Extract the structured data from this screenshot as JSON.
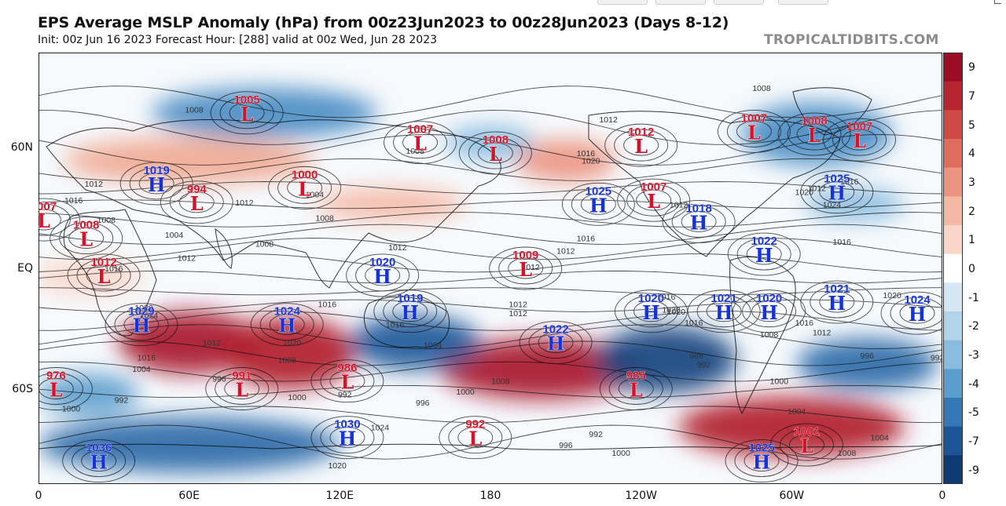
{
  "header": {
    "title": "EPS Average MSLP Anomaly (hPa) from 00z23Jun2023 to 00z28Jun2023 (Days 8-12)",
    "subtitle": "Init: 00z Jun 16 2023   Forecast Hour: [288]   valid at 00z Wed, Jun 28 2023",
    "brand": "TROPICALTIDBITS.COM"
  },
  "axes": {
    "lat_labels": [
      "60N",
      "EQ",
      "60S"
    ],
    "lon_labels": [
      "0",
      "60E",
      "120E",
      "180",
      "120W",
      "60W",
      "0"
    ]
  },
  "colorbar": {
    "labels": [
      "9",
      "7",
      "5",
      "4",
      "3",
      "2",
      "1",
      "0",
      "-1",
      "-2",
      "-3",
      "-4",
      "-5",
      "-7",
      "-9"
    ],
    "colors": [
      "#9b0d22",
      "#b8242f",
      "#cf4a44",
      "#de6d5d",
      "#eb9480",
      "#f4b8a5",
      "#fad6c9",
      "#ffffff",
      "#d6e7f3",
      "#b3d3ea",
      "#8abce0",
      "#5b9dcc",
      "#3479b5",
      "#1d5496",
      "#0e3a73"
    ]
  },
  "map": {
    "centers": [
      {
        "type": "L",
        "value": "1005",
        "lon": 83,
        "lat": 72
      },
      {
        "type": "L",
        "value": "1007",
        "lon": 152,
        "lat": 62
      },
      {
        "type": "L",
        "value": "1008",
        "lon": 182,
        "lat": 58
      },
      {
        "type": "L",
        "value": "1012",
        "lon": 240,
        "lat": 61
      },
      {
        "type": "L",
        "value": "1007",
        "lon": 285,
        "lat": 66
      },
      {
        "type": "L",
        "value": "1008",
        "lon": 309,
        "lat": 65
      },
      {
        "type": "L",
        "value": "1007",
        "lon": 327,
        "lat": 63
      },
      {
        "type": "H",
        "value": "1019",
        "lon": 47,
        "lat": 45
      },
      {
        "type": "L",
        "value": "994",
        "lon": 63,
        "lat": 36
      },
      {
        "type": "L",
        "value": "1000",
        "lon": 106,
        "lat": 43
      },
      {
        "type": "L",
        "value": "1007",
        "lon": 2,
        "lat": 27
      },
      {
        "type": "L",
        "value": "1008",
        "lon": 19,
        "lat": 17
      },
      {
        "type": "L",
        "value": "1012",
        "lon": 26,
        "lat": -4
      },
      {
        "type": "H",
        "value": "1025",
        "lon": 223,
        "lat": 35
      },
      {
        "type": "L",
        "value": "1007",
        "lon": 245,
        "lat": 37
      },
      {
        "type": "H",
        "value": "1018",
        "lon": 263,
        "lat": 26
      },
      {
        "type": "H",
        "value": "1025",
        "lon": 318,
        "lat": 41
      },
      {
        "type": "H",
        "value": "1022",
        "lon": 289,
        "lat": 8
      },
      {
        "type": "H",
        "value": "1020",
        "lon": 137,
        "lat": -4
      },
      {
        "type": "L",
        "value": "1009",
        "lon": 194,
        "lat": 0
      },
      {
        "type": "H",
        "value": "1019",
        "lon": 148,
        "lat": -24
      },
      {
        "type": "H",
        "value": "1020",
        "lon": 244,
        "lat": -24
      },
      {
        "type": "H",
        "value": "1021",
        "lon": 273,
        "lat": -24
      },
      {
        "type": "H",
        "value": "1020",
        "lon": 291,
        "lat": -24
      },
      {
        "type": "H",
        "value": "1021",
        "lon": 318,
        "lat": -19
      },
      {
        "type": "H",
        "value": "1024",
        "lon": 350,
        "lat": -25
      },
      {
        "type": "H",
        "value": "1029",
        "lon": 41,
        "lat": -31
      },
      {
        "type": "H",
        "value": "1024",
        "lon": 99,
        "lat": -31
      },
      {
        "type": "H",
        "value": "1022",
        "lon": 206,
        "lat": -40
      },
      {
        "type": "L",
        "value": "976",
        "lon": 7,
        "lat": -60
      },
      {
        "type": "L",
        "value": "991",
        "lon": 81,
        "lat": -60
      },
      {
        "type": "L",
        "value": "986",
        "lon": 123,
        "lat": -57
      },
      {
        "type": "L",
        "value": "985",
        "lon": 238,
        "lat": -60
      },
      {
        "type": "L",
        "value": "992",
        "lon": 174,
        "lat": -76
      },
      {
        "type": "H",
        "value": "1030",
        "lon": 123,
        "lat": -76
      },
      {
        "type": "H",
        "value": "1036",
        "lon": 24,
        "lat": -82
      },
      {
        "type": "H",
        "value": "1025",
        "lon": 288,
        "lat": -82
      },
      {
        "type": "L",
        "value": "1001",
        "lon": 306,
        "lat": -78
      }
    ],
    "anomaly_blobs": [
      {
        "lon": 60,
        "lat": -40,
        "rx": 28,
        "ry": 16,
        "color": "#a8142a"
      },
      {
        "lon": 100,
        "lat": -45,
        "rx": 26,
        "ry": 18,
        "color": "#b11e2c"
      },
      {
        "lon": 200,
        "lat": -52,
        "rx": 40,
        "ry": 14,
        "color": "#a8142a"
      },
      {
        "lon": 300,
        "lat": -73,
        "rx": 45,
        "ry": 10,
        "color": "#b11e2c"
      },
      {
        "lon": 150,
        "lat": -40,
        "rx": 26,
        "ry": 14,
        "color": "#1f5899"
      },
      {
        "lon": 250,
        "lat": -48,
        "rx": 28,
        "ry": 16,
        "color": "#17457f"
      },
      {
        "lon": 330,
        "lat": -50,
        "rx": 28,
        "ry": 12,
        "color": "#2b6aa8"
      },
      {
        "lon": 20,
        "lat": -62,
        "rx": 20,
        "ry": 8,
        "color": "#5b9dcc"
      },
      {
        "lon": 60,
        "lat": -78,
        "rx": 60,
        "ry": 8,
        "color": "#2b6aa8"
      },
      {
        "lon": 90,
        "lat": 72,
        "rx": 45,
        "ry": 7,
        "color": "#4a8cc3"
      },
      {
        "lon": 310,
        "lat": 65,
        "rx": 30,
        "ry": 10,
        "color": "#4a8cc3"
      },
      {
        "lon": 180,
        "lat": 62,
        "rx": 18,
        "ry": 6,
        "color": "#8abce0"
      },
      {
        "lon": 210,
        "lat": 55,
        "rx": 20,
        "ry": 8,
        "color": "#eb9480"
      },
      {
        "lon": 60,
        "lat": 55,
        "rx": 50,
        "ry": 9,
        "color": "#f0a994"
      },
      {
        "lon": 140,
        "lat": 35,
        "rx": 30,
        "ry": 8,
        "color": "#f4b8a5"
      },
      {
        "lon": 325,
        "lat": 35,
        "rx": 20,
        "ry": 8,
        "color": "#8abce0"
      },
      {
        "lon": 20,
        "lat": -5,
        "rx": 22,
        "ry": 10,
        "color": "#fad6c9"
      }
    ],
    "isobar_labels": [
      {
        "text": "1008",
        "lon": 62,
        "lat": 73
      },
      {
        "text": "1012",
        "lon": 22,
        "lat": 45
      },
      {
        "text": "1016",
        "lon": 14,
        "lat": 37
      },
      {
        "text": "1008",
        "lon": 27,
        "lat": 27
      },
      {
        "text": "1004",
        "lon": 54,
        "lat": 19
      },
      {
        "text": "1008",
        "lon": 90,
        "lat": 14
      },
      {
        "text": "1012",
        "lon": 59,
        "lat": 6
      },
      {
        "text": "1016",
        "lon": 30,
        "lat": 0
      },
      {
        "text": "1020",
        "lon": 42,
        "lat": -22
      },
      {
        "text": "1024",
        "lon": 44,
        "lat": -26
      },
      {
        "text": "1012",
        "lon": 69,
        "lat": -40
      },
      {
        "text": "1016",
        "lon": 43,
        "lat": -47
      },
      {
        "text": "1020",
        "lon": 101,
        "lat": -40
      },
      {
        "text": "1008",
        "lon": 99,
        "lat": -48
      },
      {
        "text": "1004",
        "lon": 41,
        "lat": -52
      },
      {
        "text": "996",
        "lon": 72,
        "lat": -56
      },
      {
        "text": "1016",
        "lon": 115,
        "lat": -20
      },
      {
        "text": "1012",
        "lon": 143,
        "lat": 12
      },
      {
        "text": "1016",
        "lon": 142,
        "lat": -31
      },
      {
        "text": "1004",
        "lon": 157,
        "lat": -41
      },
      {
        "text": "1008",
        "lon": 184,
        "lat": -57
      },
      {
        "text": "1000",
        "lon": 170,
        "lat": -61
      },
      {
        "text": "996",
        "lon": 153,
        "lat": -65
      },
      {
        "text": "1012",
        "lon": 191,
        "lat": -20
      },
      {
        "text": "1012",
        "lon": 191,
        "lat": -25
      },
      {
        "text": "1012",
        "lon": 196,
        "lat": 1
      },
      {
        "text": "1012",
        "lon": 210,
        "lat": 10
      },
      {
        "text": "1016",
        "lon": 218,
        "lat": 17
      },
      {
        "text": "1012",
        "lon": 227,
        "lat": 70
      },
      {
        "text": "1008",
        "lon": 288,
        "lat": 79
      },
      {
        "text": "1016",
        "lon": 218,
        "lat": 58
      },
      {
        "text": "1020",
        "lon": 220,
        "lat": 55
      },
      {
        "text": "1012",
        "lon": 255,
        "lat": 35
      },
      {
        "text": "1016",
        "lon": 250,
        "lat": -16
      },
      {
        "text": "1020",
        "lon": 252,
        "lat": -23
      },
      {
        "text": "1016",
        "lon": 261,
        "lat": -30
      },
      {
        "text": "1008",
        "lon": 291,
        "lat": -36
      },
      {
        "text": "992",
        "lon": 265,
        "lat": -50
      },
      {
        "text": "988",
        "lon": 262,
        "lat": -46
      },
      {
        "text": "996",
        "lon": 330,
        "lat": -46
      },
      {
        "text": "992",
        "lon": 358,
        "lat": -47
      },
      {
        "text": "1012",
        "lon": 310,
        "lat": 43
      },
      {
        "text": "1016",
        "lon": 323,
        "lat": 46
      },
      {
        "text": "1020",
        "lon": 305,
        "lat": 41
      },
      {
        "text": "1024",
        "lon": 316,
        "lat": 35
      },
      {
        "text": "1016",
        "lon": 320,
        "lat": 15
      },
      {
        "text": "1016",
        "lon": 305,
        "lat": -30
      },
      {
        "text": "1012",
        "lon": 312,
        "lat": -35
      },
      {
        "text": "1020",
        "lon": 340,
        "lat": -15
      },
      {
        "text": "1004",
        "lon": 335,
        "lat": -76
      },
      {
        "text": "1000",
        "lon": 295,
        "lat": -57
      },
      {
        "text": "992",
        "lon": 222,
        "lat": -75
      },
      {
        "text": "996",
        "lon": 210,
        "lat": -78
      },
      {
        "text": "1000",
        "lon": 232,
        "lat": -80
      },
      {
        "text": "1004",
        "lon": 302,
        "lat": -68
      },
      {
        "text": "1008",
        "lon": 322,
        "lat": -80
      },
      {
        "text": "1012",
        "lon": 82,
        "lat": 36
      },
      {
        "text": "1004",
        "lon": 110,
        "lat": 40
      },
      {
        "text": "1008",
        "lon": 114,
        "lat": 28
      },
      {
        "text": "992",
        "lon": 122,
        "lat": -62
      },
      {
        "text": "1000",
        "lon": 103,
        "lat": -63
      },
      {
        "text": "1024",
        "lon": 136,
        "lat": -73
      },
      {
        "text": "1020",
        "lon": 119,
        "lat": -83
      },
      {
        "text": "992",
        "lon": 33,
        "lat": -64
      },
      {
        "text": "1000",
        "lon": 13,
        "lat": -67
      },
      {
        "text": "1008",
        "lon": 150,
        "lat": 59
      },
      {
        "text": "1020",
        "lon": 254,
        "lat": -24
      }
    ]
  }
}
